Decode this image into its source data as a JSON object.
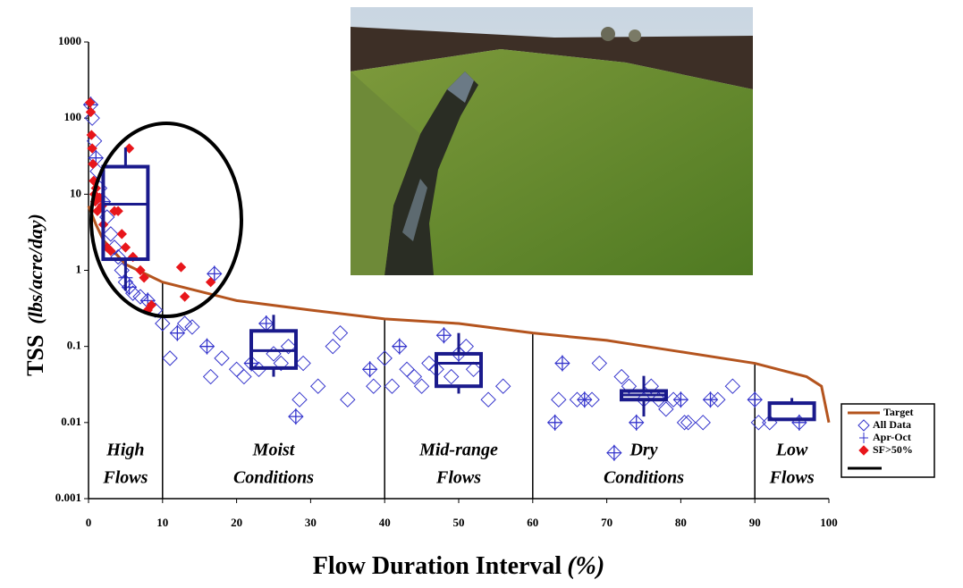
{
  "chart_data": {
    "type": "scatter",
    "xlabel": [
      "Flow Duration Interval",
      "(%)"
    ],
    "ylabel": [
      "TSS",
      "(lbs/acre/day)"
    ],
    "xlim": [
      0,
      100
    ],
    "xticks": [
      0,
      10,
      20,
      30,
      40,
      50,
      60,
      70,
      80,
      90,
      100
    ],
    "ylim": [
      0.001,
      1000
    ],
    "yticks": [
      0.001,
      0.01,
      0.1,
      1,
      10,
      100,
      1000
    ],
    "ylog": true,
    "series": [
      {
        "name": "Target",
        "type": "line",
        "color": "#b4541e",
        "x": [
          0,
          1,
          2,
          5,
          10,
          20,
          30,
          40,
          50,
          60,
          70,
          80,
          90,
          97,
          99,
          100
        ],
        "values": [
          7,
          4,
          2.5,
          1.2,
          0.7,
          0.4,
          0.3,
          0.23,
          0.2,
          0.15,
          0.12,
          0.085,
          0.06,
          0.04,
          0.03,
          0.01
        ]
      },
      {
        "name": "All Data",
        "type": "scatter",
        "marker": "diamond",
        "color": "#3333cc",
        "x": [
          0.3,
          0.5,
          0.8,
          1,
          1.2,
          1.5,
          2,
          2.5,
          3,
          3.5,
          4,
          4.5,
          5,
          5.5,
          6,
          7,
          8,
          9,
          10,
          11,
          12,
          13,
          14,
          16,
          16.5,
          17,
          18,
          20,
          21,
          22,
          23,
          24,
          25,
          26,
          27,
          28,
          28.5,
          29,
          31,
          33,
          34,
          35,
          38,
          38.5,
          40,
          41,
          42,
          43,
          44,
          45,
          46,
          47,
          48,
          49,
          50,
          51,
          52,
          54,
          56,
          63,
          63.5,
          64,
          66,
          67,
          68,
          69,
          71,
          72,
          73,
          74,
          75,
          76,
          77,
          78,
          79,
          80,
          80.5,
          81,
          83,
          84,
          85,
          87,
          90,
          90.5,
          92,
          96
        ],
        "values": [
          150,
          100,
          50,
          30,
          20,
          12,
          8,
          5,
          3,
          2,
          1.5,
          1,
          0.7,
          0.6,
          0.5,
          0.45,
          0.4,
          0.3,
          0.2,
          0.07,
          0.15,
          0.2,
          0.18,
          0.1,
          0.04,
          0.9,
          0.07,
          0.05,
          0.04,
          0.06,
          0.05,
          0.2,
          0.08,
          0.06,
          0.1,
          0.012,
          0.02,
          0.06,
          0.03,
          0.1,
          0.15,
          0.02,
          0.05,
          0.03,
          0.07,
          0.03,
          0.1,
          0.05,
          0.04,
          0.03,
          0.06,
          0.05,
          0.14,
          0.04,
          0.08,
          0.1,
          0.05,
          0.02,
          0.03,
          0.01,
          0.02,
          0.06,
          0.02,
          0.02,
          0.02,
          0.06,
          0.004,
          0.04,
          0.03,
          0.01,
          0.02,
          0.03,
          0.02,
          0.015,
          0.02,
          0.02,
          0.01,
          0.01,
          0.01,
          0.02,
          0.02,
          0.03,
          0.02,
          0.01,
          0.01,
          0.01
        ]
      },
      {
        "name": "Apr-Oct",
        "type": "scatter",
        "marker": "cross",
        "color": "#3333cc",
        "x": [
          0.3,
          1,
          2,
          5,
          5.5,
          8,
          12,
          16,
          17,
          22,
          24,
          28,
          38,
          42,
          48,
          50,
          63,
          64,
          67,
          71,
          74,
          80,
          84,
          90,
          96
        ],
        "values": [
          150,
          30,
          8,
          0.8,
          0.6,
          0.4,
          0.15,
          0.1,
          0.9,
          0.06,
          0.2,
          0.012,
          0.05,
          0.1,
          0.14,
          0.08,
          0.01,
          0.06,
          0.02,
          0.004,
          0.01,
          0.02,
          0.02,
          0.02,
          0.01
        ]
      },
      {
        "name": "SF>50%",
        "type": "scatter",
        "marker": "filled-diamond",
        "color": "#e8161b",
        "x": [
          0.2,
          0.3,
          0.4,
          0.5,
          0.6,
          0.7,
          0.8,
          0.9,
          1,
          1.2,
          1.5,
          1.8,
          2,
          2.5,
          3,
          3.5,
          4,
          4.5,
          5,
          5.5,
          6,
          7,
          7.5,
          8,
          8.5,
          12.5,
          13,
          16.5
        ],
        "values": [
          160,
          120,
          60,
          40,
          25,
          15,
          10,
          8,
          12,
          6,
          9,
          7,
          4,
          2,
          1.8,
          6,
          6,
          3,
          2,
          40,
          1.5,
          1,
          0.8,
          0.3,
          0.35,
          1.1,
          0.45,
          0.7
        ]
      }
    ],
    "boxes": {
      "color": "#1a1a8c",
      "items": [
        {
          "x": 5,
          "min": 0.54,
          "q1": 1.4,
          "median": 7.4,
          "q3": 23,
          "max": 41
        },
        {
          "x": 25,
          "min": 0.04,
          "q1": 0.052,
          "median": 0.088,
          "q3": 0.16,
          "max": 0.26
        },
        {
          "x": 50,
          "min": 0.024,
          "q1": 0.03,
          "median": 0.06,
          "q3": 0.08,
          "max": 0.15
        },
        {
          "x": 75,
          "min": 0.012,
          "q1": 0.02,
          "median": 0.023,
          "q3": 0.026,
          "max": 0.041
        },
        {
          "x": 95,
          "min": 0.011,
          "q1": 0.011,
          "median": 0.011,
          "q3": 0.018,
          "max": 0.021
        }
      ]
    },
    "zones": [
      {
        "start": 0,
        "end": 10,
        "label": [
          "High",
          "Flows"
        ]
      },
      {
        "start": 10,
        "end": 40,
        "label": [
          "Moist",
          "Conditions"
        ]
      },
      {
        "start": 40,
        "end": 60,
        "label": [
          "Mid-range",
          "Flows"
        ]
      },
      {
        "start": 60,
        "end": 90,
        "label": [
          "Dry",
          "Conditions"
        ]
      },
      {
        "start": 90,
        "end": 100,
        "label": [
          "Low",
          "Flows"
        ]
      }
    ]
  }
}
